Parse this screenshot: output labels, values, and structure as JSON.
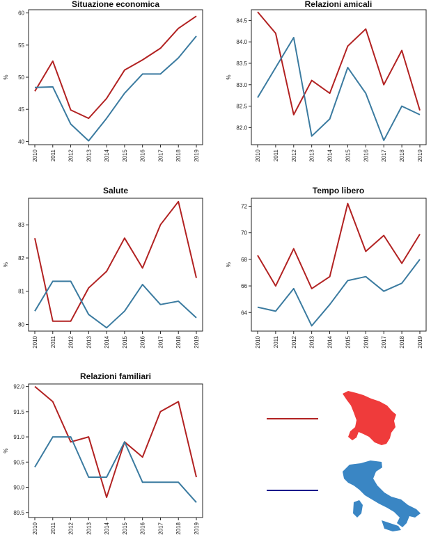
{
  "colors": {
    "toscana": "#b22222",
    "italia": "#3b7ba0",
    "legend_italia_line": "#00008b",
    "map_toscana": "#ef3b3b",
    "map_italia": "#3a86c4"
  },
  "legend": {
    "items": [
      {
        "line_color": "#b22222",
        "map_icon": "tuscany-map-icon",
        "map_color": "#ef3b3b"
      },
      {
        "line_color": "#00008b",
        "map_icon": "italy-map-icon",
        "map_color": "#3a86c4"
      }
    ]
  },
  "chart_data": [
    {
      "type": "line",
      "title": "Situazione economica",
      "ylabel": "%",
      "x": [
        "2010",
        "2011",
        "2012",
        "2013",
        "2014",
        "2015",
        "2016",
        "2017",
        "2018",
        "2019"
      ],
      "ylim": [
        39.5,
        60.5
      ],
      "yticks": [
        "40",
        "45",
        "50",
        "55",
        "60"
      ],
      "series": [
        {
          "color": "#b22222",
          "values": [
            47.8,
            52.5,
            44.9,
            43.6,
            46.7,
            51.1,
            52.7,
            54.5,
            57.6,
            59.5
          ]
        },
        {
          "color": "#3b7ba0",
          "values": [
            48.4,
            48.5,
            42.7,
            40.1,
            43.6,
            47.5,
            50.5,
            50.5,
            53.0,
            56.4
          ]
        }
      ]
    },
    {
      "type": "line",
      "title": "Relazioni amicali",
      "ylabel": "%",
      "x": [
        "2010",
        "2011",
        "2012",
        "2013",
        "2014",
        "2015",
        "2016",
        "2017",
        "2018",
        "2019"
      ],
      "ylim": [
        81.6,
        84.75
      ],
      "yticks": [
        "82.0",
        "82.5",
        "83.0",
        "83.5",
        "84.0",
        "84.5"
      ],
      "series": [
        {
          "color": "#b22222",
          "values": [
            84.7,
            84.2,
            82.3,
            83.1,
            82.8,
            83.9,
            84.3,
            83.0,
            83.8,
            82.4
          ]
        },
        {
          "color": "#3b7ba0",
          "values": [
            82.7,
            83.4,
            84.1,
            81.8,
            82.2,
            83.4,
            82.8,
            81.7,
            82.5,
            82.3
          ]
        }
      ]
    },
    {
      "type": "line",
      "title": "Salute",
      "ylabel": "%",
      "x": [
        "2010",
        "2011",
        "2012",
        "2013",
        "2014",
        "2015",
        "2016",
        "2017",
        "2018",
        "2019"
      ],
      "ylim": [
        79.8,
        83.8
      ],
      "yticks": [
        "80",
        "81",
        "82",
        "83"
      ],
      "series": [
        {
          "color": "#b22222",
          "values": [
            82.6,
            80.1,
            80.1,
            81.1,
            81.6,
            82.6,
            81.7,
            83.0,
            83.7,
            81.4
          ]
        },
        {
          "color": "#3b7ba0",
          "values": [
            80.4,
            81.3,
            81.3,
            80.3,
            79.9,
            80.4,
            81.2,
            80.6,
            80.7,
            80.2
          ]
        }
      ]
    },
    {
      "type": "line",
      "title": "Tempo libero",
      "ylabel": "%",
      "x": [
        "2010",
        "2011",
        "2012",
        "2013",
        "2014",
        "2015",
        "2016",
        "2017",
        "2018",
        "2019"
      ],
      "ylim": [
        62.6,
        72.6
      ],
      "yticks": [
        "64",
        "66",
        "68",
        "70",
        "72"
      ],
      "series": [
        {
          "color": "#b22222",
          "values": [
            68.3,
            66.0,
            68.8,
            65.8,
            66.7,
            72.2,
            68.6,
            69.8,
            67.7,
            69.9
          ]
        },
        {
          "color": "#3b7ba0",
          "values": [
            64.4,
            64.1,
            65.8,
            63.0,
            64.6,
            66.4,
            66.7,
            65.6,
            66.2,
            68.0
          ]
        }
      ]
    },
    {
      "type": "line",
      "title": "Relazioni familiari",
      "ylabel": "%",
      "x": [
        "2010",
        "2011",
        "2012",
        "2013",
        "2014",
        "2015",
        "2016",
        "2017",
        "2018",
        "2019"
      ],
      "ylim": [
        89.4,
        92.05
      ],
      "yticks": [
        "89.5",
        "90.0",
        "90.5",
        "91.0",
        "91.5",
        "92.0"
      ],
      "series": [
        {
          "color": "#b22222",
          "values": [
            92.0,
            91.7,
            90.9,
            91.0,
            89.8,
            90.9,
            90.6,
            91.5,
            91.7,
            90.2
          ]
        },
        {
          "color": "#3b7ba0",
          "values": [
            90.4,
            91.0,
            91.0,
            90.2,
            90.2,
            90.9,
            90.1,
            90.1,
            90.1,
            89.7
          ]
        }
      ]
    }
  ]
}
